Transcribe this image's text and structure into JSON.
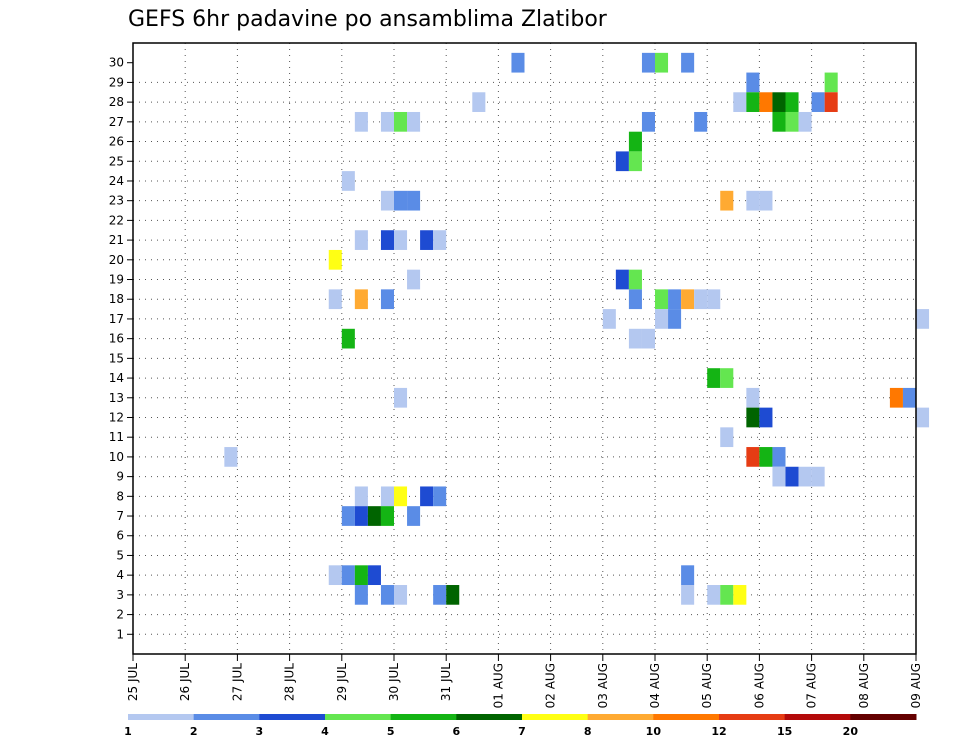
{
  "chart_data": {
    "type": "heatmap",
    "title": "GEFS 6hr padavine po ansamblima Zlatibor",
    "xlabel": "",
    "ylabel": "",
    "x_ticks": [
      "25 JUL",
      "26 JUL",
      "27 JUL",
      "28 JUL",
      "29 JUL",
      "30 JUL",
      "31 JUL",
      "01 AUG",
      "02 AUG",
      "03 AUG",
      "04 AUG",
      "05 AUG",
      "06 AUG",
      "07 AUG",
      "08 AUG",
      "09 AUG"
    ],
    "y_ticks": [
      "1",
      "2",
      "3",
      "4",
      "5",
      "6",
      "7",
      "8",
      "9",
      "10",
      "11",
      "12",
      "13",
      "14",
      "15",
      "16",
      "17",
      "18",
      "19",
      "20",
      "21",
      "22",
      "23",
      "24",
      "25",
      "26",
      "27",
      "28",
      "29",
      "30"
    ],
    "x_range_days": [
      0,
      15
    ],
    "y_range": [
      0,
      30
    ],
    "grid": true,
    "legend": {
      "placement": "bottom",
      "levels": [
        "1",
        "2",
        "3",
        "4",
        "5",
        "6",
        "7",
        "8",
        "10",
        "12",
        "15",
        "20"
      ],
      "colors": [
        "#b4c8f0",
        "#5a8ce6",
        "#1e4bd2",
        "#64e650",
        "#14b414",
        "#006400",
        "#ffff14",
        "#ffaa32",
        "#ff7800",
        "#e63c14",
        "#b40a0a",
        "#640000"
      ]
    },
    "cells": [
      {
        "t": 29,
        "e": 29,
        "c": 1
      },
      {
        "t": 39,
        "e": 29,
        "c": 1
      },
      {
        "t": 40,
        "e": 29,
        "c": 3
      },
      {
        "t": 42,
        "e": 29,
        "c": 1
      },
      {
        "t": 47,
        "e": 28,
        "c": 1
      },
      {
        "t": 53,
        "e": 28,
        "c": 3
      },
      {
        "t": 26,
        "e": 27,
        "c": 0
      },
      {
        "t": 46,
        "e": 27,
        "c": 0
      },
      {
        "t": 47,
        "e": 27,
        "c": 4
      },
      {
        "t": 48,
        "e": 27,
        "c": 8
      },
      {
        "t": 49,
        "e": 27,
        "c": 5
      },
      {
        "t": 50,
        "e": 27,
        "c": 4
      },
      {
        "t": 52,
        "e": 27,
        "c": 1
      },
      {
        "t": 53,
        "e": 27,
        "c": 9
      },
      {
        "t": 17,
        "e": 26,
        "c": 0
      },
      {
        "t": 19,
        "e": 26,
        "c": 0
      },
      {
        "t": 20,
        "e": 26,
        "c": 3
      },
      {
        "t": 21,
        "e": 26,
        "c": 0
      },
      {
        "t": 39,
        "e": 26,
        "c": 1
      },
      {
        "t": 43,
        "e": 26,
        "c": 1
      },
      {
        "t": 49,
        "e": 26,
        "c": 4
      },
      {
        "t": 50,
        "e": 26,
        "c": 3
      },
      {
        "t": 51,
        "e": 26,
        "c": 0
      },
      {
        "t": 38,
        "e": 25,
        "c": 4
      },
      {
        "t": 37,
        "e": 24,
        "c": 2
      },
      {
        "t": 38,
        "e": 24,
        "c": 3
      },
      {
        "t": 16,
        "e": 23,
        "c": 0
      },
      {
        "t": 19,
        "e": 22,
        "c": 0
      },
      {
        "t": 20,
        "e": 22,
        "c": 1
      },
      {
        "t": 21,
        "e": 22,
        "c": 1
      },
      {
        "t": 45,
        "e": 22,
        "c": 7
      },
      {
        "t": 47,
        "e": 22,
        "c": 0
      },
      {
        "t": 48,
        "e": 22,
        "c": 0
      },
      {
        "t": 17,
        "e": 20,
        "c": 0
      },
      {
        "t": 19,
        "e": 20,
        "c": 2
      },
      {
        "t": 20,
        "e": 20,
        "c": 0
      },
      {
        "t": 22,
        "e": 20,
        "c": 2
      },
      {
        "t": 23,
        "e": 20,
        "c": 0
      },
      {
        "t": 15,
        "e": 19,
        "c": 6
      },
      {
        "t": 21,
        "e": 18,
        "c": 0
      },
      {
        "t": 37,
        "e": 18,
        "c": 2
      },
      {
        "t": 38,
        "e": 18,
        "c": 3
      },
      {
        "t": 15,
        "e": 17,
        "c": 0
      },
      {
        "t": 17,
        "e": 17,
        "c": 7
      },
      {
        "t": 19,
        "e": 17,
        "c": 1
      },
      {
        "t": 38,
        "e": 17,
        "c": 1
      },
      {
        "t": 40,
        "e": 17,
        "c": 3
      },
      {
        "t": 41,
        "e": 17,
        "c": 1
      },
      {
        "t": 42,
        "e": 17,
        "c": 7
      },
      {
        "t": 43,
        "e": 17,
        "c": 0
      },
      {
        "t": 44,
        "e": 17,
        "c": 0
      },
      {
        "t": 36,
        "e": 16,
        "c": 0
      },
      {
        "t": 40,
        "e": 16,
        "c": 0
      },
      {
        "t": 41,
        "e": 16,
        "c": 1
      },
      {
        "t": 60,
        "e": 16,
        "c": 0
      },
      {
        "t": 16,
        "e": 15,
        "c": 4
      },
      {
        "t": 38,
        "e": 15,
        "c": 0
      },
      {
        "t": 39,
        "e": 15,
        "c": 0
      },
      {
        "t": 44,
        "e": 13,
        "c": 4
      },
      {
        "t": 45,
        "e": 13,
        "c": 3
      },
      {
        "t": 20,
        "e": 12,
        "c": 0
      },
      {
        "t": 47,
        "e": 12,
        "c": 0
      },
      {
        "t": 58,
        "e": 12,
        "c": 8
      },
      {
        "t": 59,
        "e": 12,
        "c": 1
      },
      {
        "t": 47,
        "e": 11,
        "c": 5
      },
      {
        "t": 48,
        "e": 11,
        "c": 2
      },
      {
        "t": 60,
        "e": 11,
        "c": 0
      },
      {
        "t": 45,
        "e": 10,
        "c": 0
      },
      {
        "t": 7,
        "e": 9,
        "c": 0
      },
      {
        "t": 47,
        "e": 9,
        "c": 9
      },
      {
        "t": 48,
        "e": 9,
        "c": 4
      },
      {
        "t": 49,
        "e": 9,
        "c": 1
      },
      {
        "t": 49,
        "e": 8,
        "c": 0
      },
      {
        "t": 50,
        "e": 8,
        "c": 2
      },
      {
        "t": 51,
        "e": 8,
        "c": 0
      },
      {
        "t": 52,
        "e": 8,
        "c": 0
      },
      {
        "t": 17,
        "e": 7,
        "c": 0
      },
      {
        "t": 19,
        "e": 7,
        "c": 0
      },
      {
        "t": 20,
        "e": 7,
        "c": 6
      },
      {
        "t": 22,
        "e": 7,
        "c": 2
      },
      {
        "t": 23,
        "e": 7,
        "c": 1
      },
      {
        "t": 16,
        "e": 6,
        "c": 1
      },
      {
        "t": 17,
        "e": 6,
        "c": 2
      },
      {
        "t": 18,
        "e": 6,
        "c": 5
      },
      {
        "t": 19,
        "e": 6,
        "c": 4
      },
      {
        "t": 21,
        "e": 6,
        "c": 1
      },
      {
        "t": 15,
        "e": 3,
        "c": 0
      },
      {
        "t": 16,
        "e": 3,
        "c": 1
      },
      {
        "t": 17,
        "e": 3,
        "c": 4
      },
      {
        "t": 18,
        "e": 3,
        "c": 2
      },
      {
        "t": 42,
        "e": 3,
        "c": 1
      },
      {
        "t": 17,
        "e": 2,
        "c": 1
      },
      {
        "t": 19,
        "e": 2,
        "c": 1
      },
      {
        "t": 20,
        "e": 2,
        "c": 0
      },
      {
        "t": 23,
        "e": 2,
        "c": 1
      },
      {
        "t": 24,
        "e": 2,
        "c": 5
      },
      {
        "t": 42,
        "e": 2,
        "c": 0
      },
      {
        "t": 44,
        "e": 2,
        "c": 0
      },
      {
        "t": 45,
        "e": 2,
        "c": 3
      },
      {
        "t": 46,
        "e": 2,
        "c": 6
      }
    ]
  }
}
